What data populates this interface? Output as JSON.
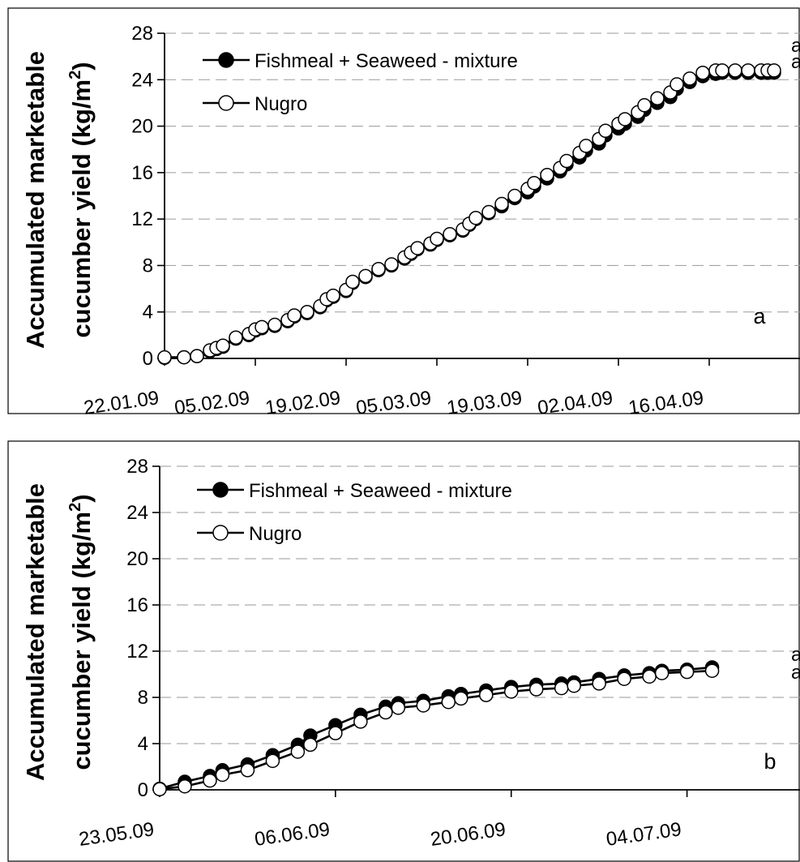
{
  "chart_data": [
    {
      "type": "line",
      "panel_label": "a",
      "ylabel_line1": "Accumulated marketable",
      "ylabel_line2_prefix": "cucumber yield (kg/m",
      "ylabel_sup": "2",
      "ylabel_line2_suffix": ")",
      "ylim": [
        0,
        28
      ],
      "yticks": [
        "0",
        "4",
        "8",
        "12",
        "16",
        "20",
        "24",
        "28"
      ],
      "xlim": [
        "2009-01-22",
        "2009-04-30"
      ],
      "xticks": [
        "22.01.09",
        "05.02.09",
        "19.02.09",
        "05.03.09",
        "19.03.09",
        "02.04.09",
        "16.04.09"
      ],
      "grid": "horizontal dashed",
      "legend_position": "top-left",
      "significance_letters": [
        "a",
        "a"
      ],
      "series": [
        {
          "name": "Fishmeal + Seaweed - mixture",
          "marker": "filled",
          "x": [
            "2009-01-22",
            "2009-01-25",
            "2009-01-27",
            "2009-01-29",
            "2009-01-30",
            "2009-01-31",
            "2009-02-02",
            "2009-02-04",
            "2009-02-05",
            "2009-02-06",
            "2009-02-08",
            "2009-02-10",
            "2009-02-11",
            "2009-02-13",
            "2009-02-15",
            "2009-02-16",
            "2009-02-17",
            "2009-02-19",
            "2009-02-20",
            "2009-02-22",
            "2009-02-24",
            "2009-02-26",
            "2009-02-28",
            "2009-03-01",
            "2009-03-02",
            "2009-03-04",
            "2009-03-05",
            "2009-03-07",
            "2009-03-09",
            "2009-03-10",
            "2009-03-11",
            "2009-03-13",
            "2009-03-15",
            "2009-03-17",
            "2009-03-19",
            "2009-03-20",
            "2009-03-22",
            "2009-03-24",
            "2009-03-25",
            "2009-03-27",
            "2009-03-28",
            "2009-03-30",
            "2009-03-31",
            "2009-04-02",
            "2009-04-03",
            "2009-04-05",
            "2009-04-06",
            "2009-04-08",
            "2009-04-10",
            "2009-04-11",
            "2009-04-13",
            "2009-04-15",
            "2009-04-17",
            "2009-04-18",
            "2009-04-20",
            "2009-04-22",
            "2009-04-24",
            "2009-04-25",
            "2009-04-26"
          ],
          "y": [
            0.05,
            0.1,
            0.2,
            0.6,
            0.8,
            1.0,
            1.7,
            2.0,
            2.4,
            2.6,
            2.8,
            3.2,
            3.6,
            3.9,
            4.4,
            5.0,
            5.3,
            5.8,
            6.5,
            7.0,
            7.6,
            8.0,
            8.6,
            9.0,
            9.4,
            9.8,
            10.2,
            10.6,
            11.0,
            11.5,
            12.0,
            12.5,
            13.1,
            13.8,
            14.3,
            14.8,
            15.5,
            16.1,
            16.7,
            17.3,
            17.9,
            18.5,
            19.2,
            19.8,
            20.2,
            20.8,
            21.4,
            22.0,
            22.5,
            23.2,
            23.8,
            24.3,
            24.5,
            24.6,
            24.6,
            24.6,
            24.6,
            24.6,
            24.6
          ]
        },
        {
          "name": "Nugro",
          "marker": "open",
          "x": [
            "2009-01-22",
            "2009-01-25",
            "2009-01-27",
            "2009-01-29",
            "2009-01-30",
            "2009-01-31",
            "2009-02-02",
            "2009-02-04",
            "2009-02-05",
            "2009-02-06",
            "2009-02-08",
            "2009-02-10",
            "2009-02-11",
            "2009-02-13",
            "2009-02-15",
            "2009-02-16",
            "2009-02-17",
            "2009-02-19",
            "2009-02-20",
            "2009-02-22",
            "2009-02-24",
            "2009-02-26",
            "2009-02-28",
            "2009-03-01",
            "2009-03-02",
            "2009-03-04",
            "2009-03-05",
            "2009-03-07",
            "2009-03-09",
            "2009-03-10",
            "2009-03-11",
            "2009-03-13",
            "2009-03-15",
            "2009-03-17",
            "2009-03-19",
            "2009-03-20",
            "2009-03-22",
            "2009-03-24",
            "2009-03-25",
            "2009-03-27",
            "2009-03-28",
            "2009-03-30",
            "2009-03-31",
            "2009-04-02",
            "2009-04-03",
            "2009-04-05",
            "2009-04-06",
            "2009-04-08",
            "2009-04-10",
            "2009-04-11",
            "2009-04-13",
            "2009-04-15",
            "2009-04-17",
            "2009-04-18",
            "2009-04-20",
            "2009-04-22",
            "2009-04-24",
            "2009-04-25",
            "2009-04-26"
          ],
          "y": [
            0.1,
            0.1,
            0.2,
            0.7,
            0.9,
            1.1,
            1.8,
            2.1,
            2.5,
            2.7,
            2.9,
            3.3,
            3.7,
            4.0,
            4.5,
            5.1,
            5.4,
            5.9,
            6.6,
            7.1,
            7.7,
            8.1,
            8.7,
            9.1,
            9.5,
            9.9,
            10.3,
            10.7,
            11.1,
            11.6,
            12.1,
            12.6,
            13.3,
            14.0,
            14.6,
            15.1,
            15.8,
            16.4,
            17.0,
            17.7,
            18.3,
            18.9,
            19.6,
            20.2,
            20.6,
            21.2,
            21.8,
            22.4,
            22.9,
            23.6,
            24.1,
            24.6,
            24.8,
            24.8,
            24.8,
            24.8,
            24.8,
            24.8,
            24.8
          ]
        }
      ]
    },
    {
      "type": "line",
      "panel_label": "b",
      "ylabel_line1": "Accumulated marketable",
      "ylabel_line2_prefix": "cucumber yield (kg/m",
      "ylabel_sup": "2",
      "ylabel_line2_suffix": ")",
      "ylim": [
        0,
        28
      ],
      "yticks": [
        "0",
        "4",
        "8",
        "12",
        "16",
        "20",
        "24",
        "28"
      ],
      "xlim": [
        "2009-05-23",
        "2009-07-13"
      ],
      "xticks": [
        "23.05.09",
        "06.06.09",
        "20.06.09",
        "04.07.09"
      ],
      "grid": "horizontal dashed",
      "legend_position": "top-left",
      "significance_letters": [
        "a",
        "a"
      ],
      "series": [
        {
          "name": "Fishmeal + Seaweed - mixture",
          "marker": "filled",
          "x": [
            "2009-05-23",
            "2009-05-25",
            "2009-05-27",
            "2009-05-28",
            "2009-05-30",
            "2009-06-01",
            "2009-06-03",
            "2009-06-04",
            "2009-06-06",
            "2009-06-08",
            "2009-06-10",
            "2009-06-11",
            "2009-06-13",
            "2009-06-15",
            "2009-06-16",
            "2009-06-18",
            "2009-06-20",
            "2009-06-22",
            "2009-06-24",
            "2009-06-25",
            "2009-06-27",
            "2009-06-29",
            "2009-07-01",
            "2009-07-02",
            "2009-07-04",
            "2009-07-06"
          ],
          "y": [
            0.1,
            0.7,
            1.2,
            1.7,
            2.2,
            3.0,
            3.9,
            4.7,
            5.6,
            6.5,
            7.2,
            7.5,
            7.7,
            8.1,
            8.3,
            8.6,
            8.9,
            9.1,
            9.2,
            9.3,
            9.6,
            9.9,
            10.1,
            10.3,
            10.4,
            10.6
          ]
        },
        {
          "name": "Nugro",
          "marker": "open",
          "x": [
            "2009-05-23",
            "2009-05-25",
            "2009-05-27",
            "2009-05-28",
            "2009-05-30",
            "2009-06-01",
            "2009-06-03",
            "2009-06-04",
            "2009-06-06",
            "2009-06-08",
            "2009-06-10",
            "2009-06-11",
            "2009-06-13",
            "2009-06-15",
            "2009-06-16",
            "2009-06-18",
            "2009-06-20",
            "2009-06-22",
            "2009-06-24",
            "2009-06-25",
            "2009-06-27",
            "2009-06-29",
            "2009-07-01",
            "2009-07-02",
            "2009-07-04",
            "2009-07-06"
          ],
          "y": [
            0.05,
            0.3,
            0.8,
            1.3,
            1.7,
            2.5,
            3.3,
            3.9,
            4.9,
            5.9,
            6.7,
            7.1,
            7.3,
            7.6,
            7.9,
            8.2,
            8.5,
            8.7,
            8.8,
            9.0,
            9.2,
            9.6,
            9.8,
            10.1,
            10.2,
            10.3
          ]
        }
      ]
    }
  ]
}
